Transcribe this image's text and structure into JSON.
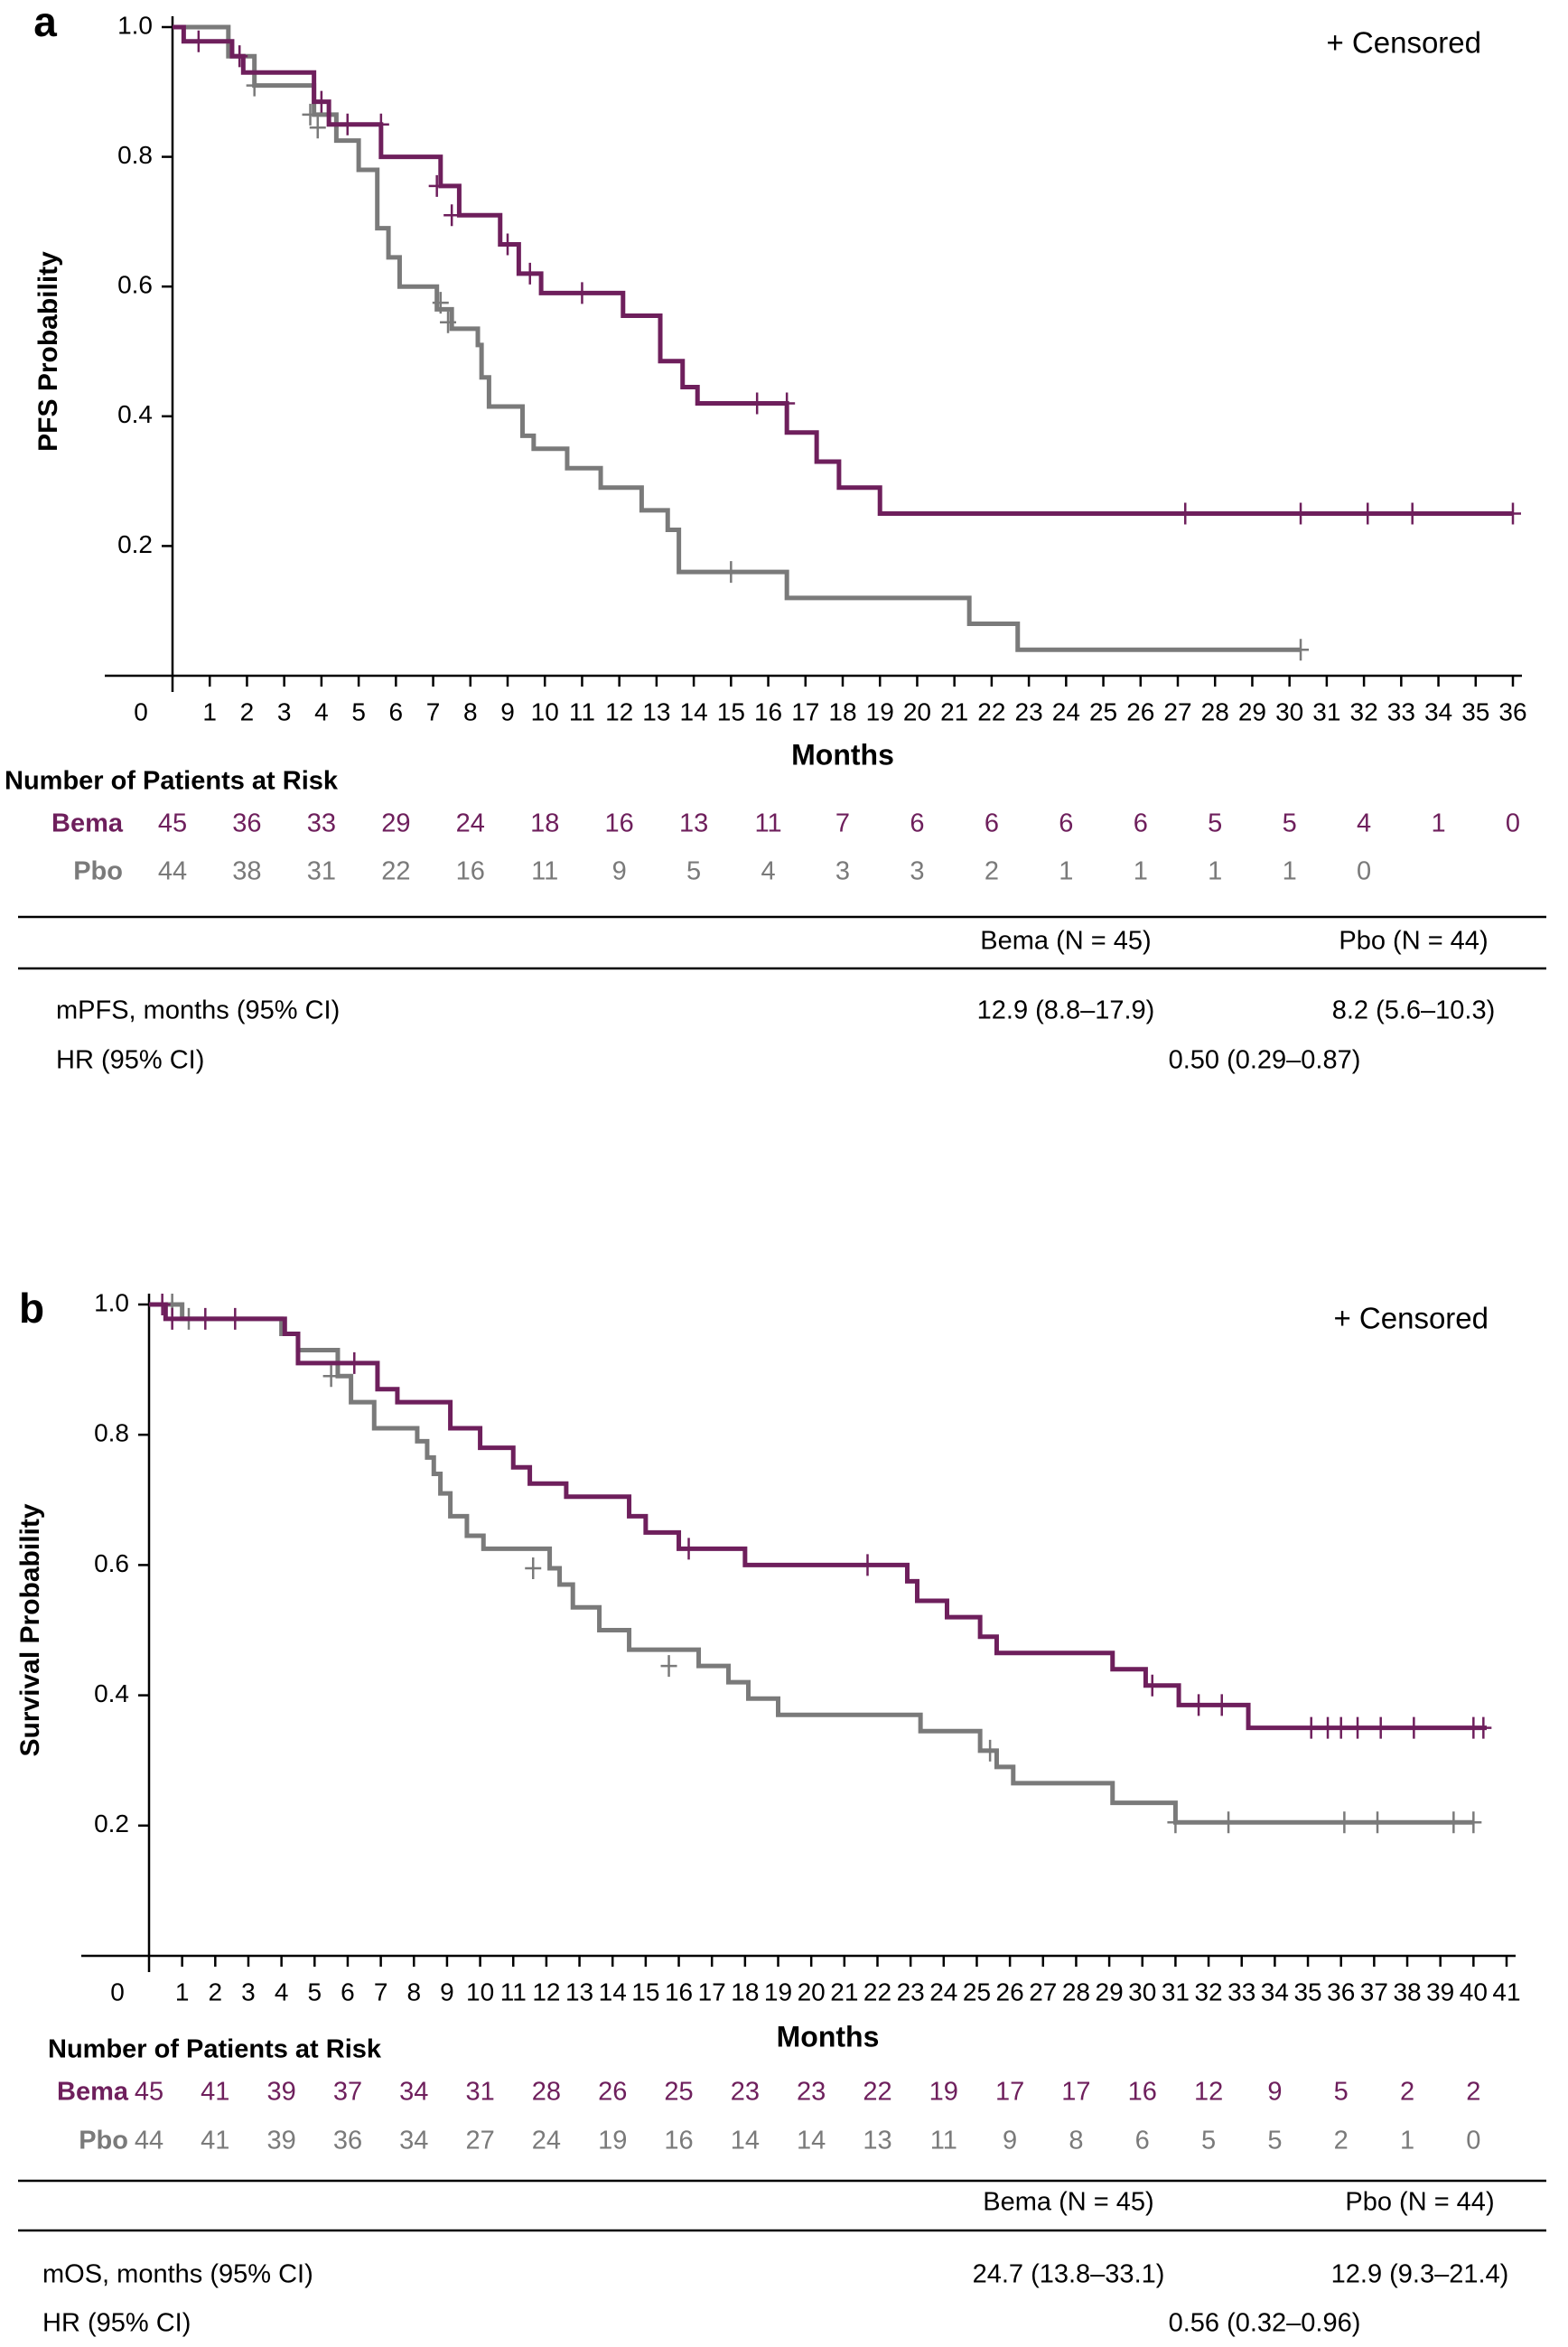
{
  "colors": {
    "bema": "#6E1F5C",
    "pbo": "#7A7A7A",
    "axis": "#000000",
    "text": "#000000"
  },
  "chart_data": [
    {
      "panel": "a",
      "type": "line",
      "subtype": "kaplan-meier",
      "ylabel": "PFS Probability",
      "xlabel": "Months",
      "censor_legend": "+ Censored",
      "xlim": [
        0,
        36
      ],
      "ylim": [
        0,
        1
      ],
      "yticks": [
        "0.2",
        "0.4",
        "0.6",
        "0.8",
        "1.0"
      ],
      "xtick_labels": [
        "0",
        "1",
        "2",
        "3",
        "4",
        "5",
        "6",
        "7",
        "8",
        "9",
        "10",
        "11",
        "12",
        "13",
        "14",
        "15",
        "16",
        "17",
        "18",
        "19",
        "20",
        "21",
        "22",
        "23",
        "24",
        "25",
        "26",
        "27",
        "28",
        "29",
        "30",
        "31",
        "32",
        "33",
        "34",
        "35",
        "36"
      ],
      "series": [
        {
          "name": "Bema",
          "steps": [
            [
              0,
              1.0
            ],
            [
              0.3,
              0.978
            ],
            [
              1.6,
              0.955
            ],
            [
              1.9,
              0.93
            ],
            [
              3.8,
              0.885
            ],
            [
              4.2,
              0.85
            ],
            [
              5.6,
              0.8
            ],
            [
              7.2,
              0.755
            ],
            [
              7.7,
              0.71
            ],
            [
              8.8,
              0.665
            ],
            [
              9.3,
              0.62
            ],
            [
              9.9,
              0.59
            ],
            [
              12.1,
              0.555
            ],
            [
              13.1,
              0.485
            ],
            [
              13.7,
              0.445
            ],
            [
              14.1,
              0.42
            ],
            [
              16.5,
              0.375
            ],
            [
              17.3,
              0.33
            ],
            [
              17.9,
              0.29
            ],
            [
              19.0,
              0.25
            ],
            [
              36,
              0.25
            ]
          ],
          "censored": [
            [
              0.7,
              0.978
            ],
            [
              1.8,
              0.955
            ],
            [
              4.0,
              0.885
            ],
            [
              4.7,
              0.85
            ],
            [
              5.6,
              0.85
            ],
            [
              7.1,
              0.755
            ],
            [
              7.5,
              0.71
            ],
            [
              9.0,
              0.665
            ],
            [
              9.6,
              0.62
            ],
            [
              11.0,
              0.59
            ],
            [
              15.7,
              0.42
            ],
            [
              16.5,
              0.42
            ],
            [
              27.2,
              0.25
            ],
            [
              30.3,
              0.25
            ],
            [
              32.1,
              0.25
            ],
            [
              33.3,
              0.25
            ],
            [
              36,
              0.25
            ]
          ]
        },
        {
          "name": "Pbo",
          "steps": [
            [
              0,
              1.0
            ],
            [
              1.5,
              0.955
            ],
            [
              2.2,
              0.91
            ],
            [
              3.8,
              0.865
            ],
            [
              4.4,
              0.825
            ],
            [
              5.0,
              0.78
            ],
            [
              5.5,
              0.69
            ],
            [
              5.8,
              0.645
            ],
            [
              6.1,
              0.6
            ],
            [
              7.1,
              0.565
            ],
            [
              7.5,
              0.535
            ],
            [
              8.2,
              0.51
            ],
            [
              8.3,
              0.46
            ],
            [
              8.5,
              0.415
            ],
            [
              9.4,
              0.37
            ],
            [
              9.7,
              0.35
            ],
            [
              10.6,
              0.32
            ],
            [
              11.5,
              0.29
            ],
            [
              12.6,
              0.255
            ],
            [
              13.3,
              0.225
            ],
            [
              13.6,
              0.16
            ],
            [
              16.5,
              0.12
            ],
            [
              21.4,
              0.08
            ],
            [
              22.7,
              0.04
            ],
            [
              30.3,
              0.04
            ]
          ],
          "censored": [
            [
              1.8,
              0.955
            ],
            [
              2.2,
              0.91
            ],
            [
              3.7,
              0.865
            ],
            [
              3.9,
              0.845
            ],
            [
              7.2,
              0.575
            ],
            [
              7.4,
              0.545
            ],
            [
              15.0,
              0.16
            ],
            [
              30.3,
              0.04
            ]
          ]
        }
      ],
      "risk_table": {
        "title": "Number of Patients at Risk",
        "months": [
          0,
          2,
          4,
          6,
          8,
          10,
          12,
          14,
          16,
          18,
          20,
          22,
          24,
          26,
          28,
          30,
          32,
          34,
          36
        ],
        "rows": [
          {
            "label": "Bema",
            "values": [
              "45",
              "36",
              "33",
              "29",
              "24",
              "18",
              "16",
              "13",
              "11",
              "7",
              "6",
              "6",
              "6",
              "6",
              "5",
              "5",
              "4",
              "1",
              "0"
            ]
          },
          {
            "label": "Pbo",
            "values": [
              "44",
              "38",
              "31",
              "22",
              "16",
              "11",
              "9",
              "5",
              "4",
              "3",
              "3",
              "2",
              "1",
              "1",
              "1",
              "1",
              "0"
            ]
          }
        ]
      },
      "summary": {
        "col_headers": [
          "Bema (N = 45)",
          "Pbo (N = 44)"
        ],
        "rows": [
          {
            "label": "mPFS, months (95% CI)",
            "bema": "12.9 (8.8–17.9)",
            "pbo": "8.2 (5.6–10.3)"
          },
          {
            "label": "HR (95% CI)",
            "combined": "0.50 (0.29–0.87)"
          }
        ]
      }
    },
    {
      "panel": "b",
      "type": "line",
      "subtype": "kaplan-meier",
      "ylabel": "Survival Probability",
      "xlabel": "Months",
      "censor_legend": "+ Censored",
      "xlim": [
        0,
        41
      ],
      "ylim": [
        0,
        1
      ],
      "yticks": [
        "0.2",
        "0.4",
        "0.6",
        "0.8",
        "1.0"
      ],
      "xtick_labels": [
        "0",
        "1",
        "2",
        "3",
        "4",
        "5",
        "6",
        "7",
        "8",
        "9",
        "10",
        "11",
        "12",
        "13",
        "14",
        "15",
        "16",
        "17",
        "18",
        "19",
        "20",
        "21",
        "22",
        "23",
        "24",
        "25",
        "26",
        "27",
        "28",
        "29",
        "30",
        "31",
        "32",
        "33",
        "34",
        "35",
        "36",
        "37",
        "38",
        "39",
        "40",
        "41"
      ],
      "series": [
        {
          "name": "Bema",
          "steps": [
            [
              0,
              1.0
            ],
            [
              0.5,
              0.978
            ],
            [
              4.1,
              0.955
            ],
            [
              4.5,
              0.91
            ],
            [
              6.9,
              0.87
            ],
            [
              7.5,
              0.85
            ],
            [
              9.1,
              0.81
            ],
            [
              10.0,
              0.78
            ],
            [
              11.0,
              0.75
            ],
            [
              11.5,
              0.725
            ],
            [
              12.6,
              0.705
            ],
            [
              14.5,
              0.675
            ],
            [
              15.0,
              0.65
            ],
            [
              16.0,
              0.625
            ],
            [
              18.0,
              0.6
            ],
            [
              22.9,
              0.575
            ],
            [
              23.2,
              0.545
            ],
            [
              24.1,
              0.52
            ],
            [
              25.1,
              0.49
            ],
            [
              25.6,
              0.465
            ],
            [
              29.1,
              0.44
            ],
            [
              30.1,
              0.415
            ],
            [
              31.1,
              0.385
            ],
            [
              33.2,
              0.35
            ],
            [
              40.4,
              0.35
            ]
          ],
          "censored": [
            [
              0.4,
              1.0
            ],
            [
              0.7,
              0.978
            ],
            [
              1.7,
              0.978
            ],
            [
              2.6,
              0.978
            ],
            [
              6.2,
              0.91
            ],
            [
              16.3,
              0.625
            ],
            [
              21.7,
              0.6
            ],
            [
              30.3,
              0.415
            ],
            [
              31.7,
              0.385
            ],
            [
              32.4,
              0.385
            ],
            [
              35.1,
              0.35
            ],
            [
              35.6,
              0.35
            ],
            [
              36.0,
              0.35
            ],
            [
              36.5,
              0.35
            ],
            [
              37.2,
              0.35
            ],
            [
              38.2,
              0.35
            ],
            [
              40.0,
              0.35
            ],
            [
              40.3,
              0.35
            ]
          ]
        },
        {
          "name": "Pbo",
          "steps": [
            [
              0,
              1.0
            ],
            [
              1.0,
              0.978
            ],
            [
              4.0,
              0.955
            ],
            [
              4.5,
              0.93
            ],
            [
              5.7,
              0.89
            ],
            [
              6.1,
              0.85
            ],
            [
              6.8,
              0.81
            ],
            [
              8.1,
              0.79
            ],
            [
              8.4,
              0.765
            ],
            [
              8.6,
              0.74
            ],
            [
              8.8,
              0.71
            ],
            [
              9.1,
              0.675
            ],
            [
              9.6,
              0.645
            ],
            [
              10.1,
              0.625
            ],
            [
              12.1,
              0.595
            ],
            [
              12.4,
              0.57
            ],
            [
              12.8,
              0.535
            ],
            [
              13.6,
              0.5
            ],
            [
              14.5,
              0.47
            ],
            [
              16.6,
              0.445
            ],
            [
              17.5,
              0.42
            ],
            [
              18.1,
              0.395
            ],
            [
              19.0,
              0.37
            ],
            [
              23.3,
              0.345
            ],
            [
              25.1,
              0.315
            ],
            [
              25.6,
              0.29
            ],
            [
              26.1,
              0.265
            ],
            [
              29.1,
              0.235
            ],
            [
              31.0,
              0.205
            ],
            [
              40.0,
              0.205
            ]
          ],
          "censored": [
            [
              0.7,
              1.0
            ],
            [
              1.2,
              0.978
            ],
            [
              5.5,
              0.89
            ],
            [
              11.6,
              0.595
            ],
            [
              15.7,
              0.445
            ],
            [
              25.4,
              0.315
            ],
            [
              31.0,
              0.205
            ],
            [
              32.6,
              0.205
            ],
            [
              36.1,
              0.205
            ],
            [
              37.1,
              0.205
            ],
            [
              39.4,
              0.205
            ],
            [
              40.0,
              0.205
            ]
          ]
        }
      ],
      "risk_table": {
        "title": "Number of Patients at Risk",
        "months": [
          0,
          2,
          4,
          6,
          8,
          10,
          12,
          14,
          16,
          18,
          20,
          22,
          24,
          26,
          28,
          30,
          32,
          34,
          36,
          38,
          40
        ],
        "rows": [
          {
            "label": "Bema",
            "values": [
              "45",
              "41",
              "39",
              "37",
              "34",
              "31",
              "28",
              "26",
              "25",
              "23",
              "23",
              "22",
              "19",
              "17",
              "17",
              "16",
              "12",
              "9",
              "5",
              "2",
              "2"
            ]
          },
          {
            "label": "Pbo",
            "values": [
              "44",
              "41",
              "39",
              "36",
              "34",
              "27",
              "24",
              "19",
              "16",
              "14",
              "14",
              "13",
              "11",
              "9",
              "8",
              "6",
              "5",
              "5",
              "2",
              "1",
              "0"
            ]
          }
        ]
      },
      "summary": {
        "col_headers": [
          "Bema (N = 45)",
          "Pbo (N = 44)"
        ],
        "rows": [
          {
            "label": "mOS, months (95% CI)",
            "bema": "24.7 (13.8–33.1)",
            "pbo": "12.9 (9.3–21.4)"
          },
          {
            "label": "HR (95% CI)",
            "combined": "0.56 (0.32–0.96)"
          }
        ]
      }
    }
  ]
}
